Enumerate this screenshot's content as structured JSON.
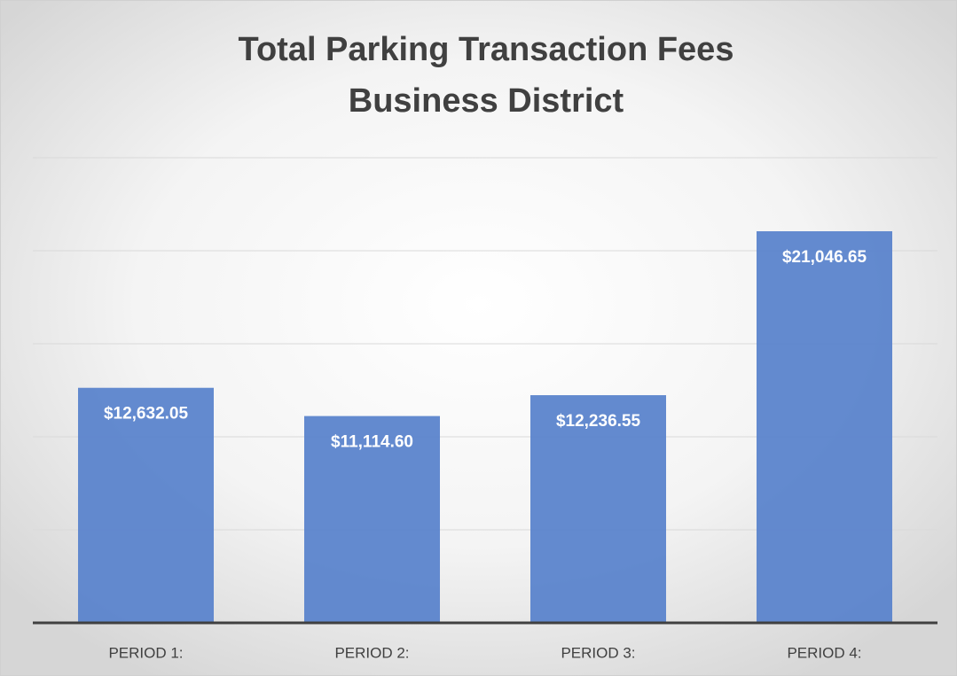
{
  "chart_data": {
    "type": "bar",
    "title": "Total Parking Transaction Fees",
    "subtitle": "Business District",
    "categories": [
      "PERIOD 1:",
      "PERIOD 2:",
      "PERIOD 3:",
      "PERIOD 4:"
    ],
    "values": [
      12632.05,
      11114.6,
      12236.55,
      21046.65
    ],
    "value_labels": [
      "$12,632.05",
      "$11,114.60",
      "$12,236.55",
      "$21,046.65"
    ],
    "color": "#5b84cc",
    "ylim": [
      0,
      25000
    ],
    "yticks": [
      0,
      5000,
      10000,
      15000,
      20000,
      25000
    ],
    "grid": true
  }
}
